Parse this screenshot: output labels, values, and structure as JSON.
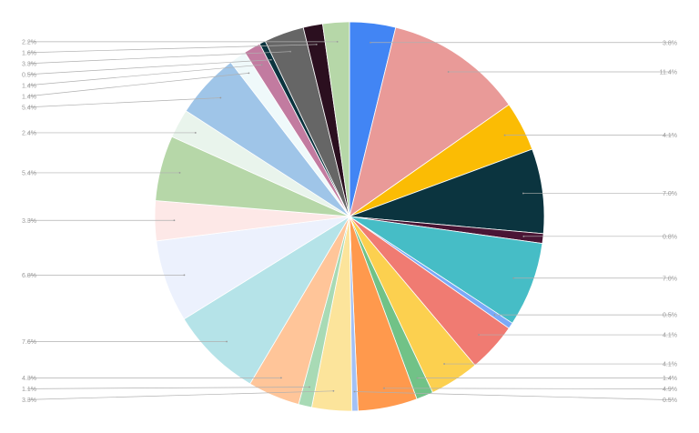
{
  "chart_data": {
    "type": "pie",
    "title": "",
    "legend": "none",
    "slices": [
      {
        "label": "3.8%",
        "value": 3.8,
        "color": "#4285f4"
      },
      {
        "label": "11.4%",
        "value": 11.4,
        "color": "#e99a98"
      },
      {
        "label": "4.1%",
        "value": 4.1,
        "color": "#fbbc04"
      },
      {
        "label": "7.0%",
        "value": 7.0,
        "color": "#0b343f"
      },
      {
        "label": "0.8%",
        "value": 0.8,
        "color": "#4a1535"
      },
      {
        "label": "7.0%",
        "value": 7.0,
        "color": "#46bdc6"
      },
      {
        "label": "0.5%",
        "value": 0.5,
        "color": "#7baaf7"
      },
      {
        "label": "4.1%",
        "value": 4.1,
        "color": "#f07b72"
      },
      {
        "label": "4.1%",
        "value": 4.1,
        "color": "#fcd04f"
      },
      {
        "label": "1.4%",
        "value": 1.4,
        "color": "#71c287"
      },
      {
        "label": "4.9%",
        "value": 4.9,
        "color": "#ff994d"
      },
      {
        "label": "0.5%",
        "value": 0.5,
        "color": "#a3c1f5"
      },
      {
        "label": "3.3%",
        "value": 3.3,
        "color": "#fce49b"
      },
      {
        "label": "1.1%",
        "value": 1.1,
        "color": "#a8dab5"
      },
      {
        "label": "4.3%",
        "value": 4.3,
        "color": "#ffc599"
      },
      {
        "label": "7.6%",
        "value": 7.6,
        "color": "#b5e3e8"
      },
      {
        "label": "6.8%",
        "value": 6.8,
        "color": "#ecf1fd"
      },
      {
        "label": "3.3%",
        "value": 3.3,
        "color": "#fde8e7"
      },
      {
        "label": "5.4%",
        "value": 5.4,
        "color": "#b6d7a8"
      },
      {
        "label": "2.4%",
        "value": 2.4,
        "color": "#e9f4ec"
      },
      {
        "label": "5.4%",
        "value": 5.4,
        "color": "#9fc5e8"
      },
      {
        "label": "1.4%",
        "value": 1.4,
        "color": "#eff9fa"
      },
      {
        "label": "1.4%",
        "value": 1.4,
        "color": "#c27ba0"
      },
      {
        "label": "0.5%",
        "value": 0.5,
        "color": "#0b343f"
      },
      {
        "label": "3.3%",
        "value": 3.3,
        "color": "#666666"
      },
      {
        "label": "1.6%",
        "value": 1.6,
        "color": "#2b0f1f"
      },
      {
        "label": "2.2%",
        "value": 2.2,
        "color": "#b6d7a8"
      }
    ]
  }
}
